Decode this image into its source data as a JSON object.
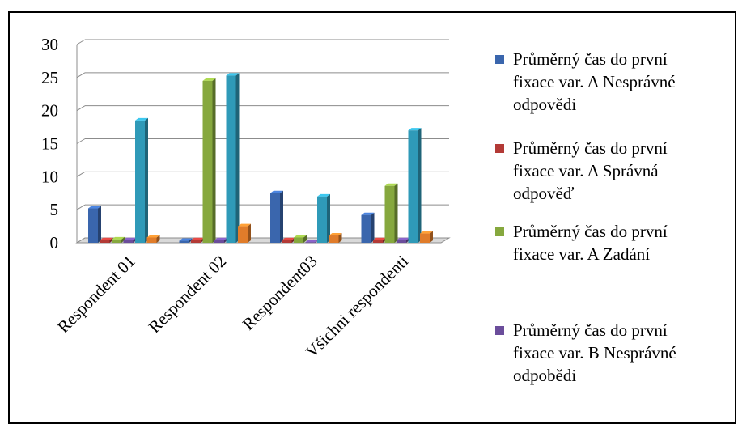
{
  "chart_data": {
    "type": "bar",
    "categories": [
      "Respondent 01",
      "Respondent 02",
      "Respondent03",
      "Všichni respondenti"
    ],
    "ylim": [
      0,
      30
    ],
    "yticks": [
      0,
      5,
      10,
      15,
      20,
      25,
      30
    ],
    "grid": true,
    "legend_position": "right",
    "series": [
      {
        "name": "Průměrný čas do první fixace var. A Nesprávné odpovědi",
        "color": "#3a66ad",
        "values": [
          5.2,
          0.3,
          7.5,
          4.2
        ]
      },
      {
        "name": "Průměrný čas do první fixace var. A Správná odpověď",
        "color": "#b33a36",
        "values": [
          0.4,
          0.4,
          0.4,
          0.4
        ]
      },
      {
        "name": "Průměrný čas do první fixace var. A Zadání",
        "color": "#86a83e",
        "values": [
          0.5,
          24.5,
          0.8,
          8.6
        ]
      },
      {
        "name": "Průměrný čas do první fixace var. B Nesprávné odpobědi",
        "color": "#6b4d9b",
        "values": [
          0.4,
          0.4,
          0.1,
          0.4
        ]
      },
      {
        "name": "",
        "color": "#2f9ab8",
        "values": [
          18.5,
          25.3,
          7.0,
          17.0
        ]
      },
      {
        "name": "",
        "color": "#e07c2a",
        "values": [
          0.8,
          2.5,
          1.1,
          1.4
        ]
      }
    ]
  },
  "legend": [
    {
      "lines": [
        "Průměrný čas do první",
        "fixace var. A Nesprávné",
        "odpovědi"
      ],
      "color": "#3a66ad"
    },
    {
      "lines": [
        "Průměrný čas do první",
        "fixace var. A Správná",
        "odpověď"
      ],
      "color": "#b33a36"
    },
    {
      "lines": [
        "Průměrný čas do první",
        "fixace var. A Zadání"
      ],
      "color": "#86a83e"
    },
    {
      "lines": [
        "Průměrný čas do první",
        "fixace var. B Nesprávné",
        "odpobědi"
      ],
      "color": "#6b4d9b"
    }
  ]
}
